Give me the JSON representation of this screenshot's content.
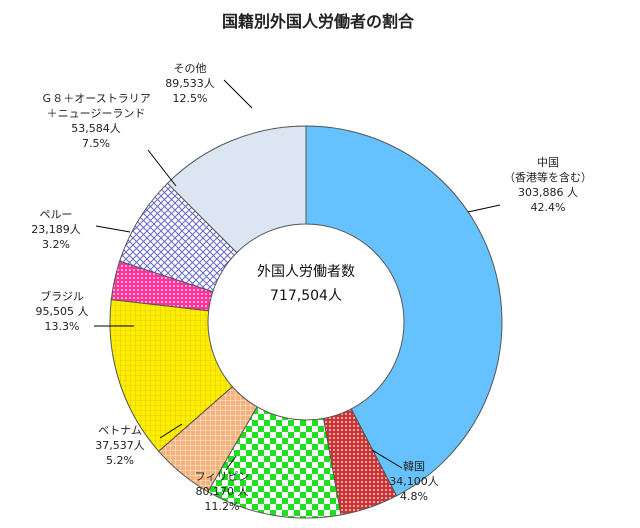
{
  "chart_data": {
    "type": "pie",
    "title": "国籍別外国人労働者の割合",
    "center_label": "外国人労働者数",
    "center_value": "717,504人",
    "slices": [
      {
        "label": "中国",
        "label2": "（香港等を含む）",
        "count": "303,886 人",
        "value": 42.4,
        "pct": "42.4%",
        "color": "#66c2ff",
        "pattern": "solid"
      },
      {
        "label": "韓国",
        "count": "34,100人",
        "value": 4.8,
        "pct": "4.8%",
        "color": "#cc3333",
        "pattern": "dots"
      },
      {
        "label": "フィリピン",
        "count": "80,170 人",
        "value": 11.2,
        "pct": "11.2%",
        "color": "#22dd22",
        "pattern": "checker"
      },
      {
        "label": "ベトナム",
        "count": "37,537人",
        "value": 5.2,
        "pct": "5.2%",
        "color": "#f5b27a",
        "pattern": "grid-orange"
      },
      {
        "label": "ブラジル",
        "count": "95,505 人",
        "value": 13.3,
        "pct": "13.3%",
        "color": "#ffee00",
        "pattern": "grid-yellow"
      },
      {
        "label": "ペルー",
        "count": "23,189人",
        "value": 3.2,
        "pct": "3.2%",
        "color": "#ff3399",
        "pattern": "dots-pink"
      },
      {
        "label": "Ｇ８＋オーストラリア",
        "label2": "＋ニュージーランド",
        "count": "53,584人",
        "value": 7.5,
        "pct": "7.5%",
        "color": "#6666cc",
        "pattern": "lattice"
      },
      {
        "label": "その他",
        "count": "89,533人",
        "value": 12.5,
        "pct": "12.5%",
        "color": "#dce6f2",
        "pattern": "solid"
      }
    ]
  }
}
